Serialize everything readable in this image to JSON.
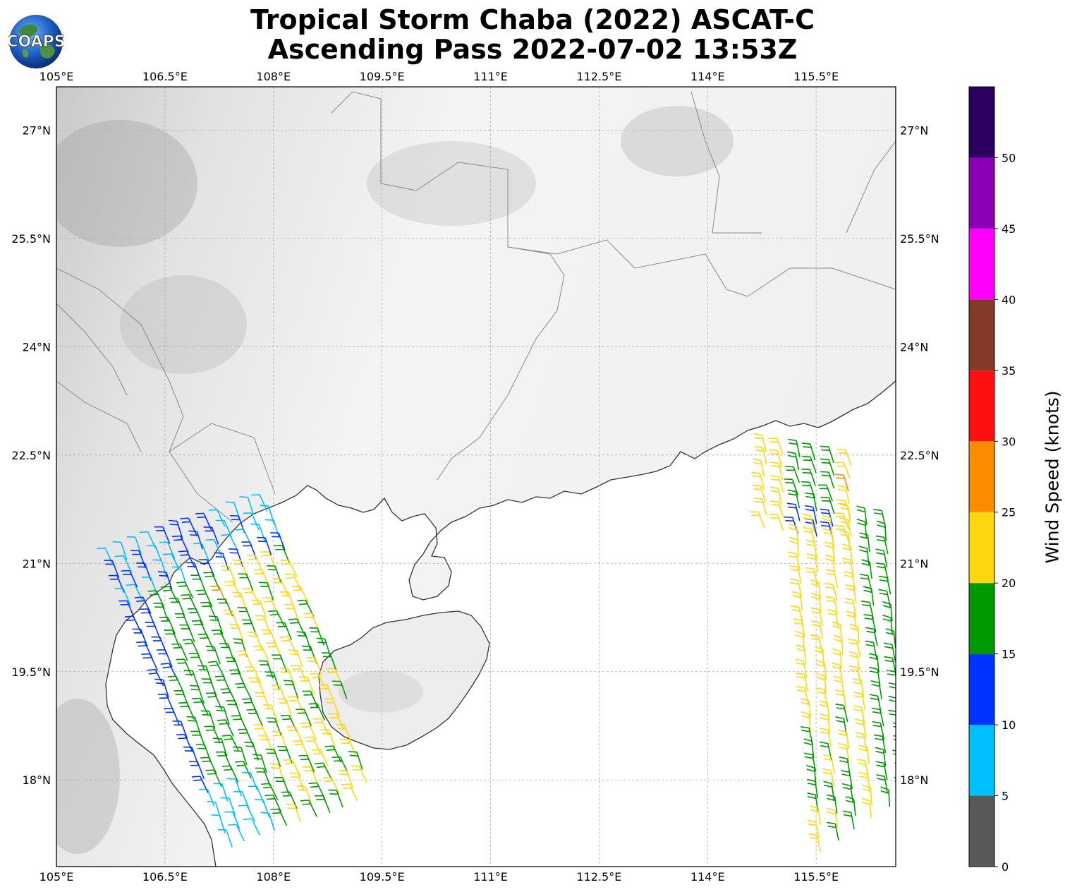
{
  "title": {
    "line1": "Tropical Storm Chaba (2022) ASCAT-C",
    "line2": "Ascending Pass 2022-07-02 13:53Z"
  },
  "logo": {
    "text": "COAPS",
    "icon": "globe-logo-icon"
  },
  "map": {
    "lon_ticks": [
      "105°E",
      "106.5°E",
      "108°E",
      "109.5°E",
      "111°E",
      "112.5°E",
      "114°E",
      "115.5°E"
    ],
    "lat_ticks": [
      "27°N",
      "25.5°N",
      "24°N",
      "22.5°N",
      "21°N",
      "19.5°N",
      "18°N"
    ],
    "lon_range": [
      105,
      116.6
    ],
    "lat_range": [
      16.8,
      27.6
    ],
    "gridlines": true,
    "land_color": "#f2f2f2",
    "ocean_color": "#ffffff",
    "coast_color": "#333333",
    "border_color": "#888888"
  },
  "colorbar": {
    "label": "Wind Speed (knots)",
    "ticks": [
      "0",
      "5",
      "10",
      "15",
      "20",
      "25",
      "30",
      "35",
      "40",
      "45",
      "50"
    ],
    "colors": [
      "#595959",
      "#00bfff",
      "#0033ff",
      "#009900",
      "#ffd711",
      "#ff8c00",
      "#ff1010",
      "#833b29",
      "#ff00ff",
      "#8b00b5",
      "#2b0060"
    ]
  }
}
